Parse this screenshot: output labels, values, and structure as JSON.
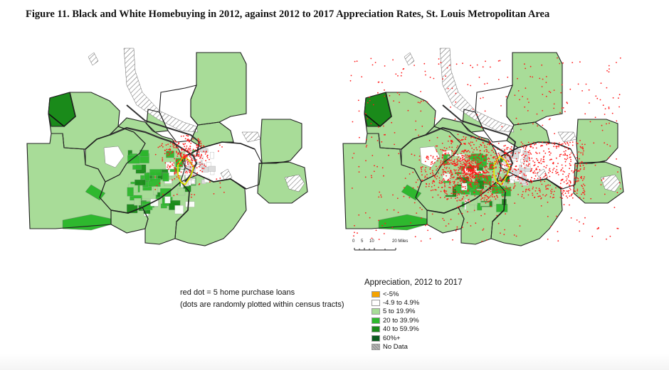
{
  "figure": {
    "title": "Figure 11. Black and White Homebuying in 2012, against 2012 to 2017 Appreciation Rates, St. Louis Metropolitan Area"
  },
  "note": {
    "line1": "red dot = 5 home purchase loans",
    "line2": "(dots are randomly plotted within census tracts)"
  },
  "scale": {
    "labels": [
      "0",
      "5",
      "10",
      "20 Miles"
    ]
  },
  "legend": {
    "title": "Appreciation, 2012 to 2017",
    "items": [
      {
        "label": "<-5%",
        "color": "#f5a300"
      },
      {
        "label": "-4.9 to 4.9%",
        "color": "#ffffff"
      },
      {
        "label": "5 to 19.9%",
        "color": "#a8dc98"
      },
      {
        "label": "20 to 39.9%",
        "color": "#2eb82e"
      },
      {
        "label": "40 to 59.9%",
        "color": "#1a8a1a"
      },
      {
        "label": "60%+",
        "color": "#0b5a1f"
      },
      {
        "label": "No Data",
        "color": "#a0a0a0"
      }
    ]
  },
  "colors": {
    "dots": "#ff1a1a",
    "river": "#333333",
    "city_boundary": "#e3e300"
  }
}
